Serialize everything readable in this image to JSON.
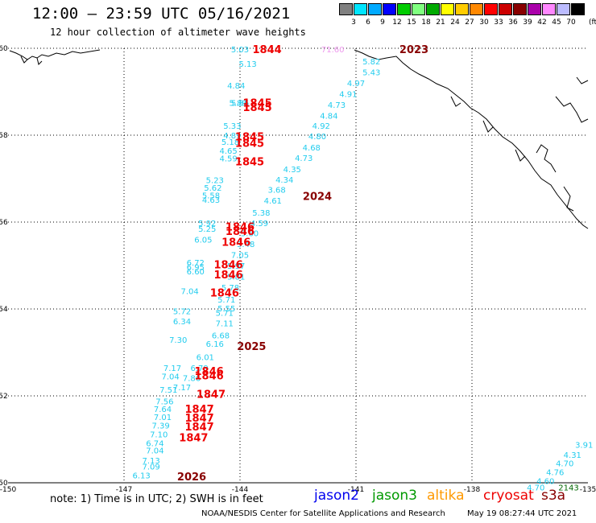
{
  "header": {
    "title": "12:00 – 23:59 UTC 05/16/2021",
    "subtitle": "12 hour collection of altimeter wave heights"
  },
  "colorbar": {
    "unit": "(ft)",
    "colors": [
      "#808080",
      "#00e5ff",
      "#00aaff",
      "#0000ff",
      "#00cc00",
      "#80ff80",
      "#00aa00",
      "#ffff00",
      "#ffcc00",
      "#ff8800",
      "#ff0000",
      "#cc0000",
      "#880000",
      "#aa00aa",
      "#ff88ff",
      "#bbbbff",
      "#000000"
    ],
    "labels": [
      "3",
      "6",
      "9",
      "12",
      "15",
      "18",
      "21",
      "24",
      "27",
      "30",
      "33",
      "36",
      "39",
      "42",
      "45",
      "70"
    ]
  },
  "map": {
    "lat_range": [
      50,
      60
    ],
    "lon_range": [
      -150,
      -135
    ],
    "lat_ticks": [
      "60",
      "58",
      "56",
      "54",
      "52",
      "50"
    ],
    "lon_ticks": [
      "-150",
      "-147",
      "-144",
      "-141",
      "-138",
      "-135"
    ],
    "grid": "dotted"
  },
  "track_values": {
    "west": [
      {
        "lat": 59.98,
        "lon": -144.0,
        "v": "5.03",
        "c": "#22ccee"
      },
      {
        "lat": 59.65,
        "lon": -143.8,
        "v": "5.13",
        "c": "#22ccee"
      },
      {
        "lat": 59.15,
        "lon": -144.1,
        "v": "4.84",
        "c": "#22ccee"
      },
      {
        "lat": 58.75,
        "lon": -144.0,
        "v": "5.86",
        "c": "#22ccee"
      },
      {
        "lat": 58.75,
        "lon": -144.05,
        "v": "5.89",
        "c": "#22ccee"
      },
      {
        "lat": 58.22,
        "lon": -144.2,
        "v": "5.33",
        "c": "#22ccee"
      },
      {
        "lat": 58.0,
        "lon": -144.2,
        "v": "4.89",
        "c": "#22ccee"
      },
      {
        "lat": 57.85,
        "lon": -144.25,
        "v": "5.18",
        "c": "#22ccee"
      },
      {
        "lat": 57.65,
        "lon": -144.3,
        "v": "4.65",
        "c": "#22ccee"
      },
      {
        "lat": 57.47,
        "lon": -144.3,
        "v": "4.59",
        "c": "#22ccee"
      },
      {
        "lat": 56.97,
        "lon": -144.65,
        "v": "5.23",
        "c": "#22ccee"
      },
      {
        "lat": 56.8,
        "lon": -144.7,
        "v": "5.62",
        "c": "#22ccee"
      },
      {
        "lat": 56.62,
        "lon": -144.75,
        "v": "5.58",
        "c": "#22ccee"
      },
      {
        "lat": 56.52,
        "lon": -144.75,
        "v": "4.63",
        "c": "#22ccee"
      },
      {
        "lat": 55.98,
        "lon": -144.85,
        "v": "5.92",
        "c": "#22ccee"
      },
      {
        "lat": 55.85,
        "lon": -144.85,
        "v": "5.25",
        "c": "#22ccee"
      },
      {
        "lat": 55.6,
        "lon": -144.95,
        "v": "6.05",
        "c": "#22ccee"
      },
      {
        "lat": 55.07,
        "lon": -145.15,
        "v": "6.72",
        "c": "#22ccee"
      },
      {
        "lat": 54.97,
        "lon": -145.15,
        "v": "6.95",
        "c": "#22ccee"
      },
      {
        "lat": 54.87,
        "lon": -145.15,
        "v": "6.60",
        "c": "#22ccee"
      },
      {
        "lat": 54.42,
        "lon": -145.3,
        "v": "7.04",
        "c": "#22ccee"
      },
      {
        "lat": 53.95,
        "lon": -145.5,
        "v": "5.72",
        "c": "#22ccee"
      },
      {
        "lat": 53.72,
        "lon": -145.5,
        "v": "6.34",
        "c": "#22ccee"
      },
      {
        "lat": 53.3,
        "lon": -145.6,
        "v": "7.30",
        "c": "#22ccee"
      },
      {
        "lat": 52.65,
        "lon": -145.75,
        "v": "7.17",
        "c": "#22ccee"
      },
      {
        "lat": 52.45,
        "lon": -145.8,
        "v": "7.04",
        "c": "#22ccee"
      },
      {
        "lat": 52.15,
        "lon": -145.85,
        "v": "7.51",
        "c": "#22ccee"
      },
      {
        "lat": 51.88,
        "lon": -145.95,
        "v": "7.56",
        "c": "#22ccee"
      },
      {
        "lat": 51.7,
        "lon": -146.0,
        "v": "7.64",
        "c": "#22ccee"
      },
      {
        "lat": 51.52,
        "lon": -146.0,
        "v": "7.01",
        "c": "#22ccee"
      },
      {
        "lat": 51.32,
        "lon": -146.05,
        "v": "7.39",
        "c": "#22ccee"
      },
      {
        "lat": 51.12,
        "lon": -146.1,
        "v": "7.10",
        "c": "#22ccee"
      },
      {
        "lat": 50.92,
        "lon": -146.2,
        "v": "6.74",
        "c": "#22ccee"
      },
      {
        "lat": 50.75,
        "lon": -146.2,
        "v": "7.04",
        "c": "#22ccee"
      },
      {
        "lat": 50.52,
        "lon": -146.3,
        "v": "7.13",
        "c": "#22ccee"
      },
      {
        "lat": 50.38,
        "lon": -146.3,
        "v": "7.09",
        "c": "#22ccee"
      },
      {
        "lat": 50.18,
        "lon": -146.55,
        "v": "6.13",
        "c": "#22ccee"
      },
      {
        "lat": 53.92,
        "lon": -144.4,
        "v": "5.71",
        "c": "#22ccee"
      },
      {
        "lat": 53.68,
        "lon": -144.4,
        "v": "7.11",
        "c": "#22ccee"
      },
      {
        "lat": 53.4,
        "lon": -144.5,
        "v": "6.68",
        "c": "#22ccee"
      },
      {
        "lat": 53.2,
        "lon": -144.65,
        "v": "6.16",
        "c": "#22ccee"
      },
      {
        "lat": 52.9,
        "lon": -144.9,
        "v": "6.01",
        "c": "#22ccee"
      },
      {
        "lat": 52.65,
        "lon": -145.05,
        "v": "6.79",
        "c": "#22ccee"
      },
      {
        "lat": 52.42,
        "lon": -145.25,
        "v": "7.86",
        "c": "#22ccee"
      },
      {
        "lat": 52.2,
        "lon": -145.5,
        "v": "7.17",
        "c": "#22ccee"
      }
    ],
    "east": [
      {
        "lat": 59.98,
        "lon": -141.6,
        "v": "71.60",
        "c": "#ee99ee"
      },
      {
        "lat": 59.7,
        "lon": -140.6,
        "v": "5.82",
        "c": "#22ccee"
      },
      {
        "lat": 59.45,
        "lon": -140.6,
        "v": "5.43",
        "c": "#22ccee"
      },
      {
        "lat": 59.2,
        "lon": -141.0,
        "v": "4.97",
        "c": "#22ccee"
      },
      {
        "lat": 58.95,
        "lon": -141.2,
        "v": "4.91",
        "c": "#22ccee"
      },
      {
        "lat": 58.7,
        "lon": -141.5,
        "v": "4.73",
        "c": "#22ccee"
      },
      {
        "lat": 58.45,
        "lon": -141.7,
        "v": "4.84",
        "c": "#22ccee"
      },
      {
        "lat": 58.22,
        "lon": -141.9,
        "v": "4.92",
        "c": "#22ccee"
      },
      {
        "lat": 57.98,
        "lon": -142.0,
        "v": "4.80",
        "c": "#22ccee"
      },
      {
        "lat": 57.72,
        "lon": -142.15,
        "v": "4.68",
        "c": "#22ccee"
      },
      {
        "lat": 57.48,
        "lon": -142.35,
        "v": "4.73",
        "c": "#22ccee"
      },
      {
        "lat": 57.22,
        "lon": -142.65,
        "v": "4.35",
        "c": "#22ccee"
      },
      {
        "lat": 56.98,
        "lon": -142.85,
        "v": "4.34",
        "c": "#22ccee"
      },
      {
        "lat": 56.75,
        "lon": -143.05,
        "v": "3.68",
        "c": "#22ccee"
      },
      {
        "lat": 56.5,
        "lon": -143.15,
        "v": "4.61",
        "c": "#22ccee"
      },
      {
        "lat": 56.22,
        "lon": -143.45,
        "v": "5.38",
        "c": "#22ccee"
      },
      {
        "lat": 55.98,
        "lon": -143.5,
        "v": "4.59",
        "c": "#22ccee"
      },
      {
        "lat": 55.75,
        "lon": -143.75,
        "v": "5.60",
        "c": "#22ccee"
      },
      {
        "lat": 55.5,
        "lon": -143.85,
        "v": "5.48",
        "c": "#22ccee"
      },
      {
        "lat": 55.25,
        "lon": -144.0,
        "v": "7.05",
        "c": "#22ccee"
      },
      {
        "lat": 55.0,
        "lon": -144.1,
        "v": "5.97",
        "c": "#22ccee"
      },
      {
        "lat": 54.75,
        "lon": -144.1,
        "v": "5.81",
        "c": "#22ccee"
      },
      {
        "lat": 54.5,
        "lon": -144.25,
        "v": "5.78",
        "c": "#22ccee"
      },
      {
        "lat": 54.22,
        "lon": -144.35,
        "v": "5.71",
        "c": "#22ccee"
      },
      {
        "lat": 54.02,
        "lon": -144.35,
        "v": "5.55",
        "c": "#22ccee"
      }
    ],
    "southeast": [
      {
        "lat": 50.88,
        "lon": -135.1,
        "v": "3.91",
        "c": "#22ccee"
      },
      {
        "lat": 50.65,
        "lon": -135.4,
        "v": "4.31",
        "c": "#22ccee"
      },
      {
        "lat": 50.45,
        "lon": -135.6,
        "v": "4.70",
        "c": "#22ccee"
      },
      {
        "lat": 50.25,
        "lon": -135.85,
        "v": "4.76",
        "c": "#22ccee"
      },
      {
        "lat": 50.05,
        "lon": -136.1,
        "v": "4.60",
        "c": "#22ccee"
      },
      {
        "lat": 49.9,
        "lon": -136.35,
        "v": "4.70",
        "c": "#22ccee"
      },
      {
        "lat": 49.9,
        "lon": -135.5,
        "v": "2143",
        "c": "#006600"
      }
    ]
  },
  "time_labels": [
    {
      "lat": 59.98,
      "lon": -143.3,
      "v": "1844",
      "c": "#ee0000"
    },
    {
      "lat": 58.75,
      "lon": -143.55,
      "v": "1845",
      "c": "#ee0000"
    },
    {
      "lat": 58.65,
      "lon": -143.55,
      "v": "1845",
      "c": "#ee0000"
    },
    {
      "lat": 57.97,
      "lon": -143.75,
      "v": "1845",
      "c": "#ee0000"
    },
    {
      "lat": 57.82,
      "lon": -143.75,
      "v": "1845",
      "c": "#ee0000"
    },
    {
      "lat": 57.4,
      "lon": -143.75,
      "v": "1845",
      "c": "#ee0000"
    },
    {
      "lat": 55.9,
      "lon": -144.0,
      "v": "1846",
      "c": "#ee0000"
    },
    {
      "lat": 55.8,
      "lon": -144.0,
      "v": "1846",
      "c": "#ee0000"
    },
    {
      "lat": 55.55,
      "lon": -144.1,
      "v": "1846",
      "c": "#ee0000"
    },
    {
      "lat": 55.03,
      "lon": -144.3,
      "v": "1846",
      "c": "#ee0000"
    },
    {
      "lat": 54.8,
      "lon": -144.3,
      "v": "1846",
      "c": "#ee0000"
    },
    {
      "lat": 54.38,
      "lon": -144.4,
      "v": "1846",
      "c": "#ee0000"
    },
    {
      "lat": 52.57,
      "lon": -144.8,
      "v": "1846",
      "c": "#ee0000"
    },
    {
      "lat": 52.47,
      "lon": -144.8,
      "v": "1846",
      "c": "#ee0000"
    },
    {
      "lat": 52.05,
      "lon": -144.75,
      "v": "1847",
      "c": "#ee0000"
    },
    {
      "lat": 51.7,
      "lon": -145.05,
      "v": "1847",
      "c": "#ee0000"
    },
    {
      "lat": 51.5,
      "lon": -145.05,
      "v": "1847",
      "c": "#ee0000"
    },
    {
      "lat": 51.3,
      "lon": -145.05,
      "v": "1847",
      "c": "#ee0000"
    },
    {
      "lat": 51.05,
      "lon": -145.2,
      "v": "1847",
      "c": "#ee0000"
    },
    {
      "lat": 59.98,
      "lon": -139.5,
      "v": "2023",
      "c": "#880000"
    },
    {
      "lat": 56.6,
      "lon": -142.0,
      "v": "2024",
      "c": "#880000"
    },
    {
      "lat": 53.15,
      "lon": -143.7,
      "v": "2025",
      "c": "#880000"
    },
    {
      "lat": 50.15,
      "lon": -145.25,
      "v": "2026",
      "c": "#880000"
    }
  ],
  "footer": {
    "note": "note: 1) Time is in UTC; 2) SWH is in feet",
    "satellites": [
      {
        "name": "jason2",
        "color": "#0000ee"
      },
      {
        "name": "jason3",
        "color": "#009900"
      },
      {
        "name": "altika",
        "color": "#ff9900"
      },
      {
        "name": "cryosat",
        "color": "#ee0000"
      },
      {
        "name": "s3a",
        "color": "#880000"
      }
    ],
    "credit": "NOAA/NESDIS Center for Satellite Applications and Research",
    "timestamp": "May 19 08:27:44 UTC 2021"
  }
}
